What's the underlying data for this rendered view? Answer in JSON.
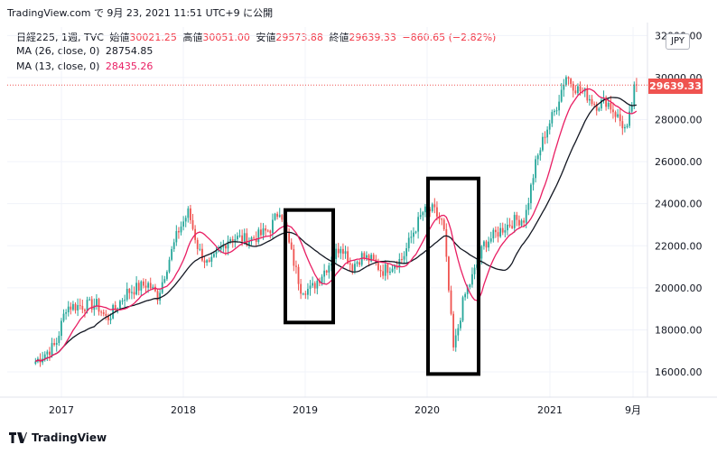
{
  "header": {
    "text": "TradingView.com で 9月 23, 2021 11:51 UTC+9 に公開"
  },
  "legend": {
    "symbol": "日経225, 1週, TVC",
    "open_label": "始値",
    "open": "30021.25",
    "high_label": "高値",
    "high": "30051.00",
    "low_label": "安値",
    "low": "29573.88",
    "close_label": "終値",
    "close": "29639.33",
    "change": "−860.65 (−2.82%)",
    "ma26_label": "MA (26, close, 0)",
    "ma26_value": "28754.85",
    "ma13_label": "MA (13, close, 0)",
    "ma13_value": "28435.26"
  },
  "price_label": "29639.33",
  "currency": "JPY",
  "footer": {
    "brand": "TradingView"
  },
  "colors": {
    "up": "#26a69a",
    "down": "#ef5350",
    "ma26": "#131722",
    "ma13": "#e91e63",
    "last_price": "#ef5350"
  },
  "chart_data": {
    "type": "candlestick",
    "title": "日経225, 1週, TVC",
    "y_ticks": [
      16000,
      18000,
      20000,
      22000,
      24000,
      26000,
      28000,
      30000,
      32000
    ],
    "y_tick_labels": [
      "16000.00",
      "18000.00",
      "20000.00",
      "22000.00",
      "24000.00",
      "26000.00",
      "28000.00",
      "30000.00",
      "32000.00"
    ],
    "x_tick_labels": [
      "2017",
      "2018",
      "2019",
      "2020",
      "2021",
      "9月"
    ],
    "ylim": [
      14800,
      32400
    ],
    "last_price": 29639.33,
    "close_path": [
      {
        "x": "2016-10",
        "y": 16500
      },
      {
        "x": "2016-12",
        "y": 17300
      },
      {
        "x": "2017-01",
        "y": 19100
      },
      {
        "x": "2017-04",
        "y": 19200
      },
      {
        "x": "2017-05",
        "y": 18500
      },
      {
        "x": "2017-07",
        "y": 19800
      },
      {
        "x": "2017-09",
        "y": 20200
      },
      {
        "x": "2017-10",
        "y": 19600
      },
      {
        "x": "2017-11",
        "y": 21200
      },
      {
        "x": "2017-12",
        "y": 22700
      },
      {
        "x": "2018-01",
        "y": 23600
      },
      {
        "x": "2018-02",
        "y": 21800
      },
      {
        "x": "2018-03",
        "y": 21000
      },
      {
        "x": "2018-05",
        "y": 22400
      },
      {
        "x": "2018-07",
        "y": 22300
      },
      {
        "x": "2018-08",
        "y": 22500
      },
      {
        "x": "2018-09",
        "y": 22800
      },
      {
        "x": "2018-10",
        "y": 23800
      },
      {
        "x": "2018-11",
        "y": 21800
      },
      {
        "x": "2018-12",
        "y": 20000
      },
      {
        "x": "2019-01",
        "y": 19900
      },
      {
        "x": "2019-02",
        "y": 20600
      },
      {
        "x": "2019-03",
        "y": 21300
      },
      {
        "x": "2019-04",
        "y": 22100
      },
      {
        "x": "2019-05",
        "y": 21000
      },
      {
        "x": "2019-06",
        "y": 21500
      },
      {
        "x": "2019-07",
        "y": 21300
      },
      {
        "x": "2019-08",
        "y": 20800
      },
      {
        "x": "2019-10",
        "y": 21400
      },
      {
        "x": "2019-11",
        "y": 22600
      },
      {
        "x": "2019-12",
        "y": 23600
      },
      {
        "x": "2020-01",
        "y": 23700
      },
      {
        "x": "2020-02",
        "y": 23000
      },
      {
        "x": "2020-03",
        "y": 17000
      },
      {
        "x": "2020-04",
        "y": 19500
      },
      {
        "x": "2020-05",
        "y": 20700
      },
      {
        "x": "2020-06",
        "y": 22100
      },
      {
        "x": "2020-08",
        "y": 22900
      },
      {
        "x": "2020-09",
        "y": 23200
      },
      {
        "x": "2020-10",
        "y": 23300
      },
      {
        "x": "2020-11",
        "y": 25800
      },
      {
        "x": "2020-12",
        "y": 27400
      },
      {
        "x": "2021-01",
        "y": 28500
      },
      {
        "x": "2021-02",
        "y": 30100
      },
      {
        "x": "2021-03",
        "y": 29500
      },
      {
        "x": "2021-04",
        "y": 29200
      },
      {
        "x": "2021-05",
        "y": 28700
      },
      {
        "x": "2021-06",
        "y": 28900
      },
      {
        "x": "2021-07",
        "y": 28200
      },
      {
        "x": "2021-08",
        "y": 27400
      },
      {
        "x": "2021-09",
        "y": 30200
      },
      {
        "x": "2021-09-17",
        "y": 29639
      }
    ],
    "series": [
      {
        "name": "MA (26, close, 0)",
        "last": 28754.85
      },
      {
        "name": "MA (13, close, 0)",
        "last": 28435.26
      }
    ],
    "grid": true
  }
}
